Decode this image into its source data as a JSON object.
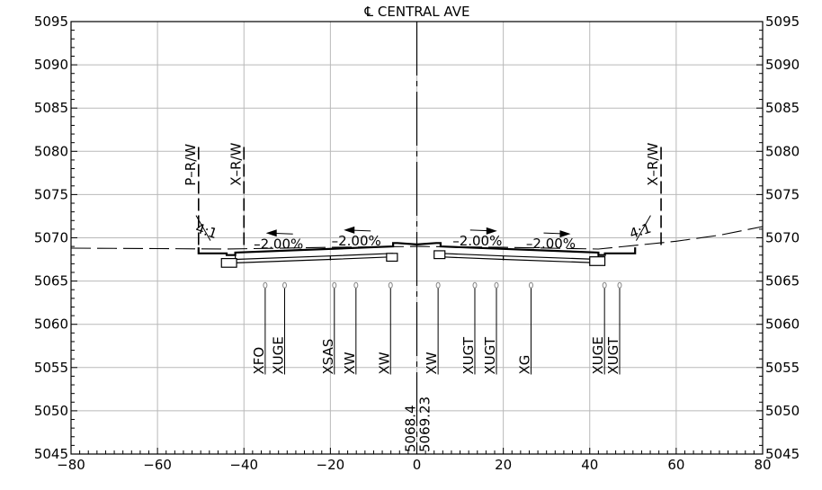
{
  "title": "℄ CENTRAL AVE",
  "x_ticks": [
    -80,
    -60,
    -40,
    -20,
    0,
    20,
    40,
    60,
    80
  ],
  "y_ticks": [
    5045,
    5050,
    5055,
    5060,
    5065,
    5070,
    5075,
    5080,
    5085,
    5090,
    5095
  ],
  "right_of_way": [
    {
      "label": "P–R/W",
      "offset": -50.5
    },
    {
      "label": "X–R/W",
      "offset": -40
    },
    {
      "label": "X–R/W",
      "offset": 56.5
    }
  ],
  "slopes": [
    {
      "label": "–2.00%",
      "offset": -32,
      "arrow": "left"
    },
    {
      "label": "–2.00%",
      "offset": -14,
      "arrow": "left"
    },
    {
      "label": "–2.00%",
      "offset": 14,
      "arrow": "right"
    },
    {
      "label": "–2.00%",
      "offset": 31,
      "arrow": "right"
    }
  ],
  "side_slopes": [
    {
      "label": "4:1",
      "offset": -49
    },
    {
      "label": "4:1",
      "offset": 52
    }
  ],
  "utilities": [
    {
      "label": "XFO",
      "offset": -35.5
    },
    {
      "label": "XUGE",
      "offset": -31
    },
    {
      "label": "XSAS",
      "offset": -19.5
    },
    {
      "label": "XW",
      "offset": -14.5
    },
    {
      "label": "XW",
      "offset": -6.5
    },
    {
      "label": "XW",
      "offset": 4.5
    },
    {
      "label": "XUGT",
      "offset": 13
    },
    {
      "label": "XUGT",
      "offset": 18
    },
    {
      "label": "XG",
      "offset": 26
    },
    {
      "label": "XUGE",
      "offset": 43
    },
    {
      "label": "XUGT",
      "offset": 46.5
    }
  ],
  "centerline_elevations": {
    "existing": "5068.4",
    "proposed": "5069.23"
  }
}
